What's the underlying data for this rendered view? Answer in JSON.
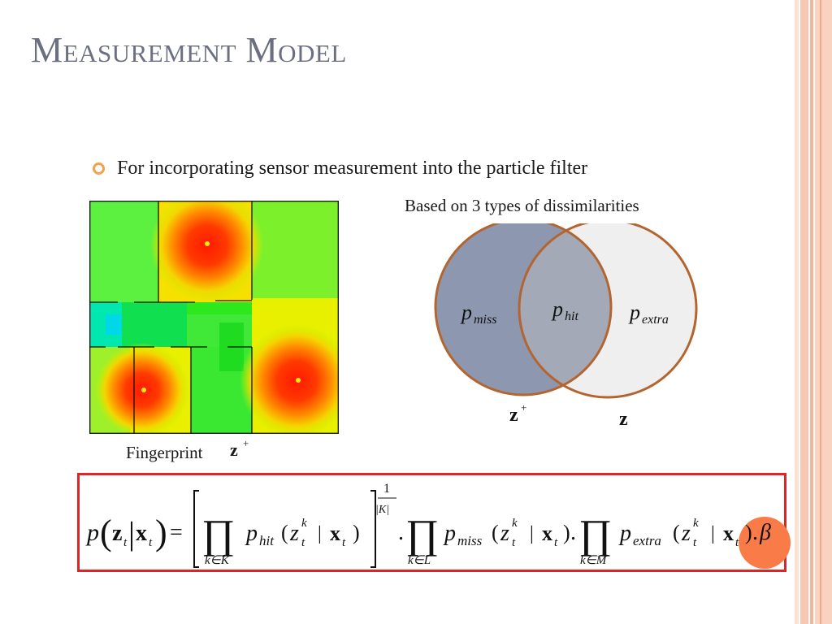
{
  "slide": {
    "title": "Measurement Model",
    "bullet": "For incorporating sensor measurement into the particle filter",
    "accent_color": "#f3a14a"
  },
  "heatmap": {
    "caption": "Fingerprint",
    "z_label": "z",
    "z_sup": "+"
  },
  "venn": {
    "caption": "Based on 3 types of dissimilarities",
    "left": {
      "p": "p",
      "sub": "miss",
      "fill": "#8d97b0"
    },
    "center": {
      "p": "p",
      "sub": "hit",
      "fill": "#a3a9b7"
    },
    "right": {
      "p": "p",
      "sub": "extra",
      "fill": "#efefef"
    },
    "border_color": "#b36530",
    "left_label": {
      "z": "z",
      "sup": "+"
    },
    "right_label": {
      "z": "z"
    }
  },
  "equation": {
    "border_color": "#e02424",
    "p": "p",
    "z": "z",
    "x": "x",
    "t": "t",
    "k": "k",
    "bar": "|",
    "eq": "=",
    "prod": "∏",
    "sub_K": "k∈K",
    "sub_L": "k∈L",
    "sub_M": "k∈M",
    "p_hit": "p",
    "hit": "hit",
    "p_miss": "p",
    "miss": "miss",
    "p_extra": "p",
    "extra": "extra",
    "exp_num": "1",
    "exp_den": "|K|",
    "dot": ".",
    "beta": "β"
  }
}
